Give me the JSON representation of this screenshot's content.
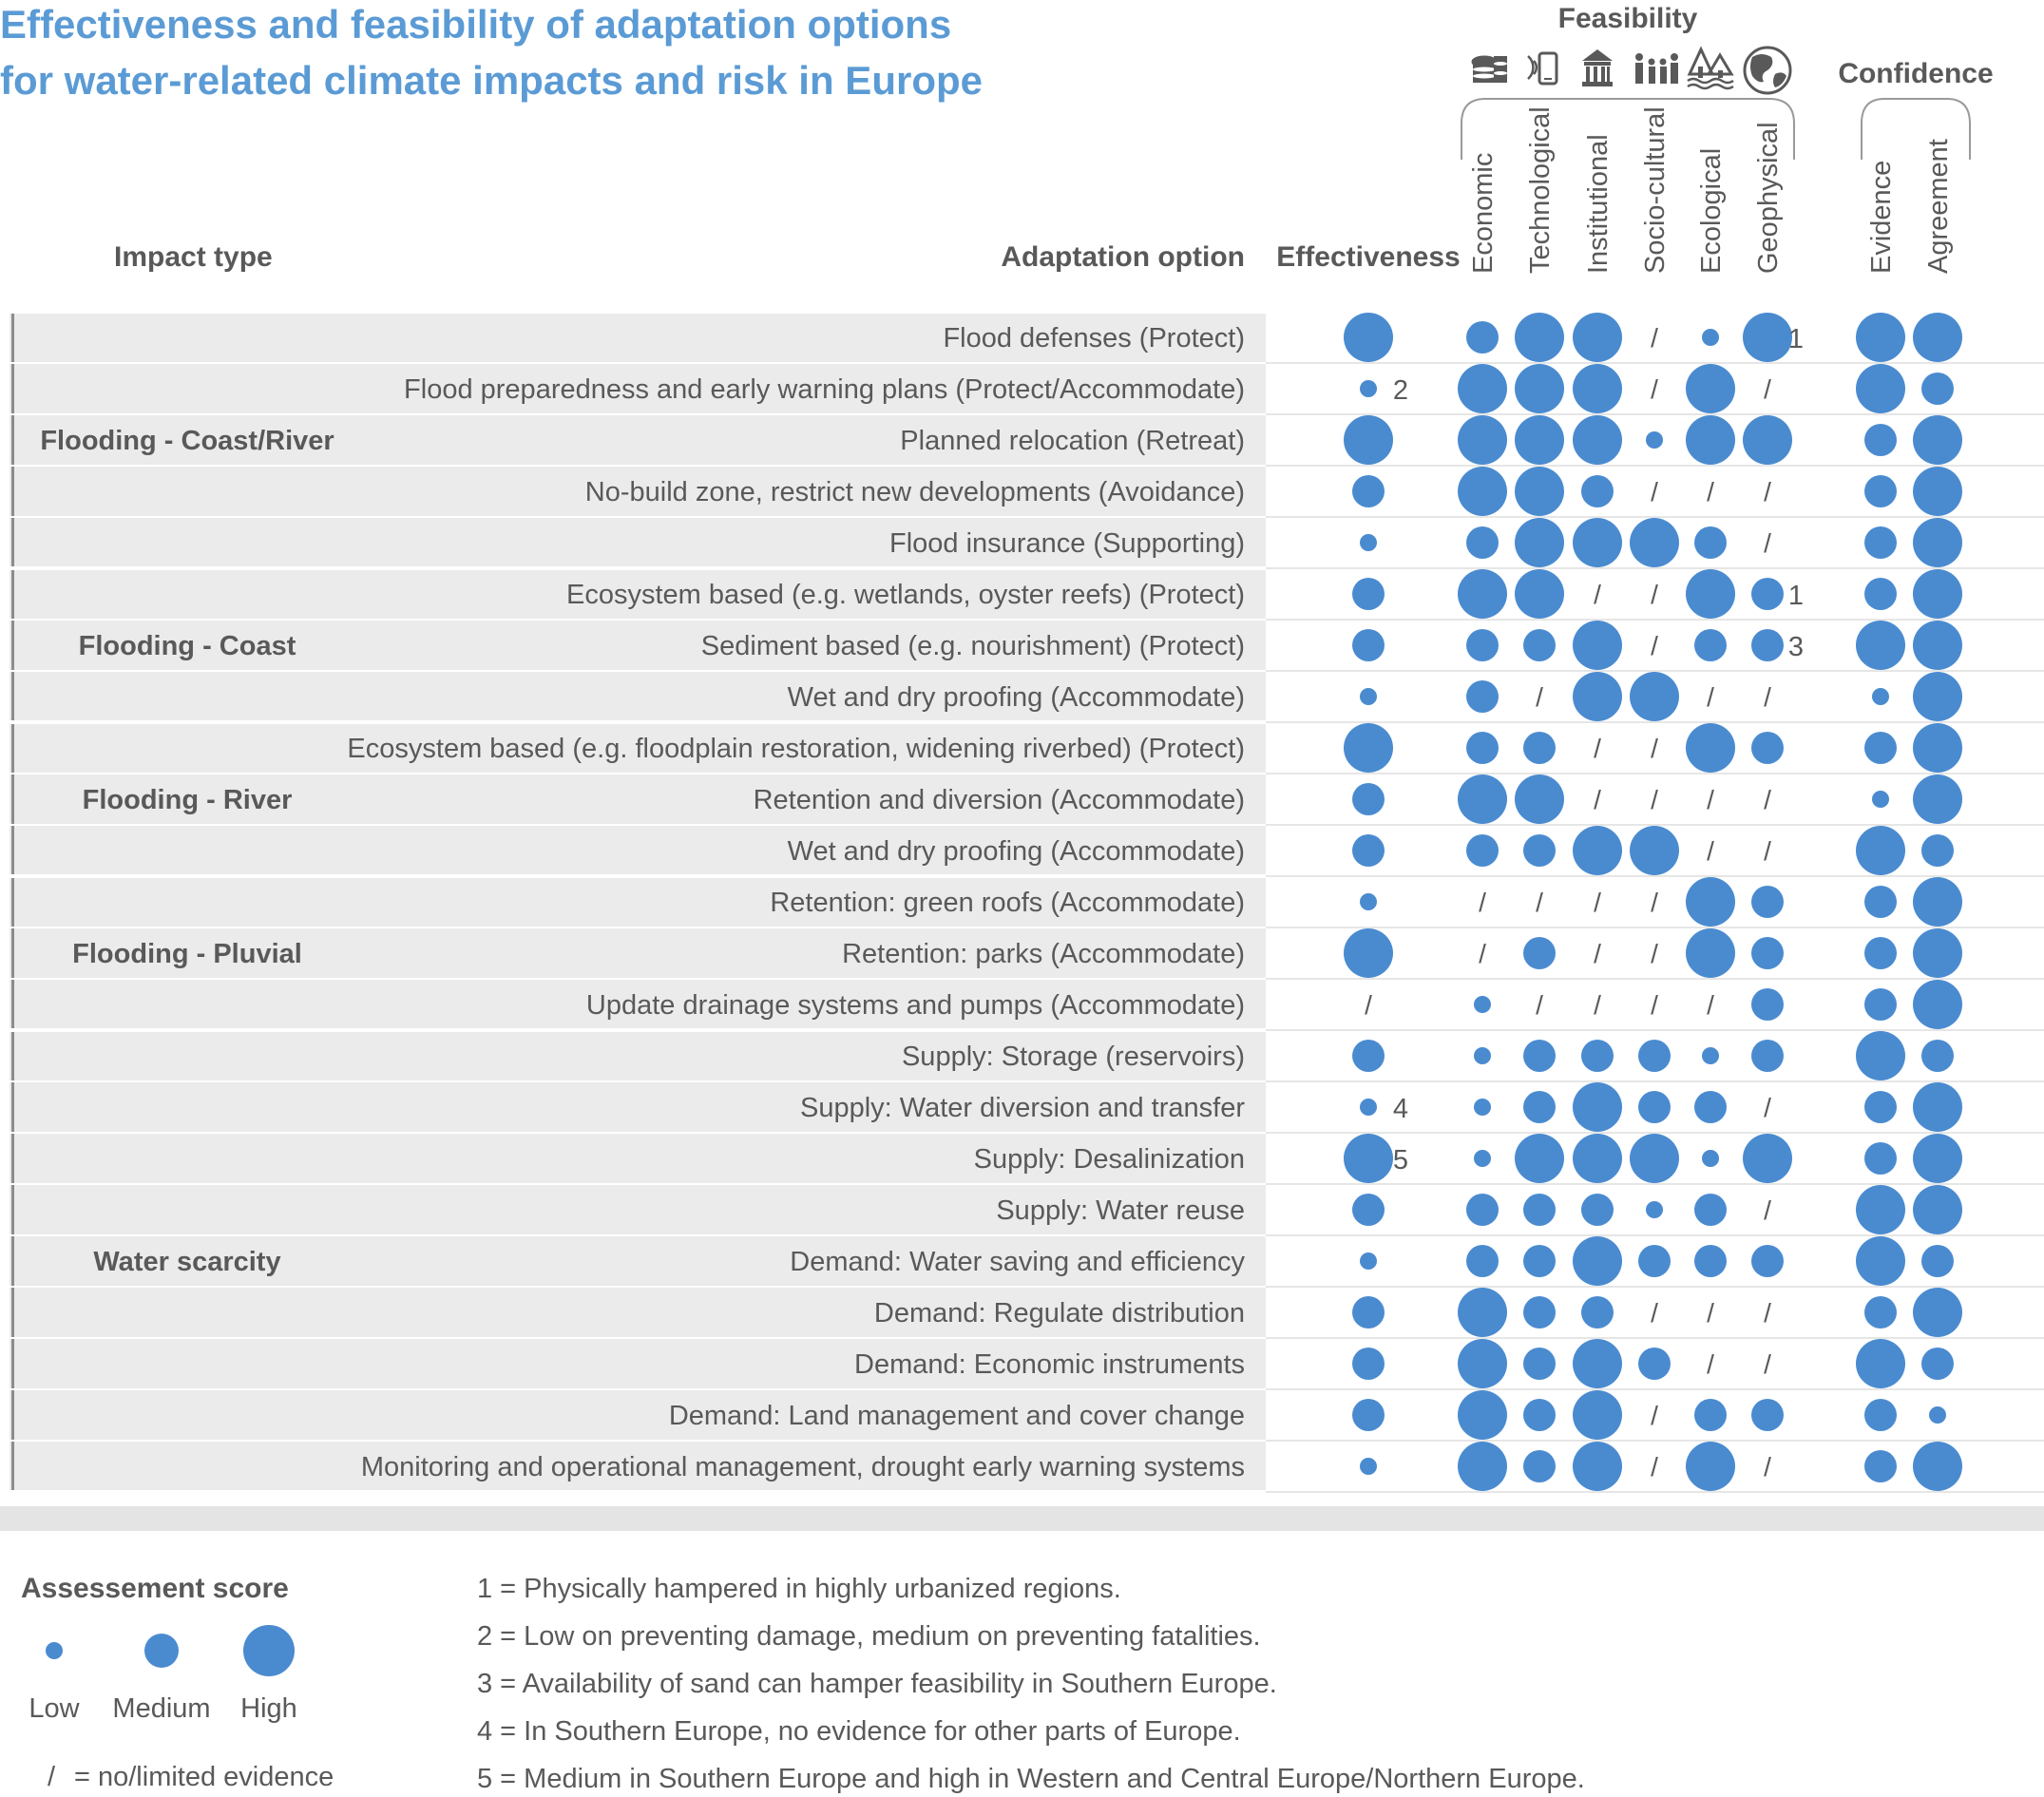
{
  "title_line1": "Effectiveness and feasibility of adaptation options",
  "title_line2": "for water-related climate impacts and risk in Europe",
  "headers": {
    "impact_type": "Impact type",
    "adaptation_option": "Adaptation option",
    "effectiveness": "Effectiveness",
    "feasibility": "Feasibility",
    "confidence": "Confidence"
  },
  "feasibility_icons": [
    "coins-icon",
    "phone-signal-icon",
    "institution-building-icon",
    "people-icon",
    "ecosystem-trees-icon",
    "globe-icon"
  ],
  "colors": {
    "dot": "#4a8bd0",
    "title": "#5b9bd5",
    "band": "#ebebeb",
    "text": "#595959"
  },
  "chart_data": {
    "type": "table",
    "scale_legend": "1 = low, 2 = medium, 3 = high, 0 = no/limited evidence",
    "columns": [
      "Effectiveness",
      "Economic",
      "Technological",
      "Institutional",
      "Socio-cultural",
      "Ecological",
      "Geophysical",
      "Evidence",
      "Agreement"
    ],
    "groups": [
      {
        "impact": "Flooding - Coast/River",
        "rows": [
          {
            "option": "Flood defenses (Protect)",
            "scores": [
              3,
              2,
              3,
              3,
              0,
              1,
              3,
              3,
              3
            ],
            "notes": {
              "6": "1"
            }
          },
          {
            "option": "Flood preparedness and early warning plans (Protect/Accommodate)",
            "scores": [
              1,
              3,
              3,
              3,
              0,
              3,
              0,
              3,
              2
            ],
            "notes": {
              "0": "2"
            }
          },
          {
            "option": "Planned relocation (Retreat)",
            "scores": [
              3,
              3,
              3,
              3,
              1,
              3,
              3,
              2,
              3
            ],
            "notes": {}
          },
          {
            "option": "No-build zone, restrict new developments (Avoidance)",
            "scores": [
              2,
              3,
              3,
              2,
              0,
              0,
              0,
              2,
              3
            ],
            "notes": {}
          },
          {
            "option": "Flood insurance (Supporting)",
            "scores": [
              1,
              2,
              3,
              3,
              3,
              2,
              0,
              2,
              3
            ],
            "notes": {}
          }
        ]
      },
      {
        "impact": "Flooding - Coast",
        "rows": [
          {
            "option": "Ecosystem based (e.g. wetlands, oyster reefs) (Protect)",
            "scores": [
              2,
              3,
              3,
              0,
              0,
              3,
              2,
              2,
              3
            ],
            "notes": {
              "6": "1"
            }
          },
          {
            "option": "Sediment based (e.g. nourishment) (Protect)",
            "scores": [
              2,
              2,
              2,
              3,
              0,
              2,
              2,
              3,
              3
            ],
            "notes": {
              "6": "3"
            }
          },
          {
            "option": "Wet and dry proofing (Accommodate)",
            "scores": [
              1,
              2,
              0,
              3,
              3,
              0,
              0,
              1,
              3
            ],
            "notes": {}
          }
        ]
      },
      {
        "impact": "Flooding - River",
        "rows": [
          {
            "option": "Ecosystem based (e.g. floodplain restoration, widening riverbed) (Protect)",
            "scores": [
              3,
              2,
              2,
              0,
              0,
              3,
              2,
              2,
              3
            ],
            "notes": {}
          },
          {
            "option": "Retention and diversion (Accommodate)",
            "scores": [
              2,
              3,
              3,
              0,
              0,
              0,
              0,
              1,
              3
            ],
            "notes": {}
          },
          {
            "option": "Wet and dry proofing (Accommodate)",
            "scores": [
              2,
              2,
              2,
              3,
              3,
              0,
              0,
              3,
              2
            ],
            "notes": {}
          }
        ]
      },
      {
        "impact": "Flooding - Pluvial",
        "rows": [
          {
            "option": "Retention: green roofs (Accommodate)",
            "scores": [
              1,
              0,
              0,
              0,
              0,
              3,
              2,
              2,
              3
            ],
            "notes": {}
          },
          {
            "option": "Retention: parks (Accommodate)",
            "scores": [
              3,
              0,
              2,
              0,
              0,
              3,
              2,
              2,
              3
            ],
            "notes": {}
          },
          {
            "option": "Update drainage systems and pumps (Accommodate)",
            "scores": [
              0,
              1,
              0,
              0,
              0,
              0,
              2,
              2,
              3
            ],
            "notes": {}
          }
        ]
      },
      {
        "impact": "Water scarcity",
        "rows": [
          {
            "option": "Supply: Storage (reservoirs)",
            "scores": [
              2,
              1,
              2,
              2,
              2,
              1,
              2,
              3,
              2
            ],
            "notes": {}
          },
          {
            "option": "Supply: Water diversion and transfer",
            "scores": [
              1,
              1,
              2,
              3,
              2,
              2,
              0,
              2,
              3
            ],
            "notes": {
              "0": "4"
            }
          },
          {
            "option": "Supply: Desalinization",
            "scores": [
              3,
              1,
              3,
              3,
              3,
              1,
              3,
              2,
              3
            ],
            "notes": {
              "0": "5"
            }
          },
          {
            "option": "Supply: Water reuse",
            "scores": [
              2,
              2,
              2,
              2,
              1,
              2,
              0,
              3,
              3
            ],
            "notes": {}
          },
          {
            "option": "Demand: Water saving and efficiency",
            "scores": [
              1,
              2,
              2,
              3,
              2,
              2,
              2,
              3,
              2
            ],
            "notes": {}
          },
          {
            "option": "Demand: Regulate distribution",
            "scores": [
              2,
              3,
              2,
              2,
              0,
              0,
              0,
              2,
              3
            ],
            "notes": {}
          },
          {
            "option": "Demand: Economic instruments",
            "scores": [
              2,
              3,
              2,
              3,
              2,
              0,
              0,
              3,
              2
            ],
            "notes": {}
          },
          {
            "option": "Demand: Land management and cover change",
            "scores": [
              2,
              3,
              2,
              3,
              0,
              2,
              2,
              2,
              1
            ],
            "notes": {}
          },
          {
            "option": "Monitoring and operational management, drought early warning systems",
            "scores": [
              1,
              3,
              2,
              3,
              0,
              3,
              0,
              2,
              3
            ],
            "notes": {}
          }
        ]
      }
    ]
  },
  "legend": {
    "title": "Assessement score",
    "low": "Low",
    "medium": "Medium",
    "high": "High",
    "slash": "/",
    "slash_text": "= no/limited evidence"
  },
  "footnotes": [
    "1 = Physically hampered in highly urbanized regions.",
    "2 = Low on preventing damage, medium on preventing fatalities.",
    "3 = Availability of sand can hamper feasibility in Southern Europe.",
    "4 = In Southern Europe, no evidence for other parts of Europe.",
    "5 = Medium in Southern Europe and high in Western and Central Europe/Northern Europe."
  ]
}
